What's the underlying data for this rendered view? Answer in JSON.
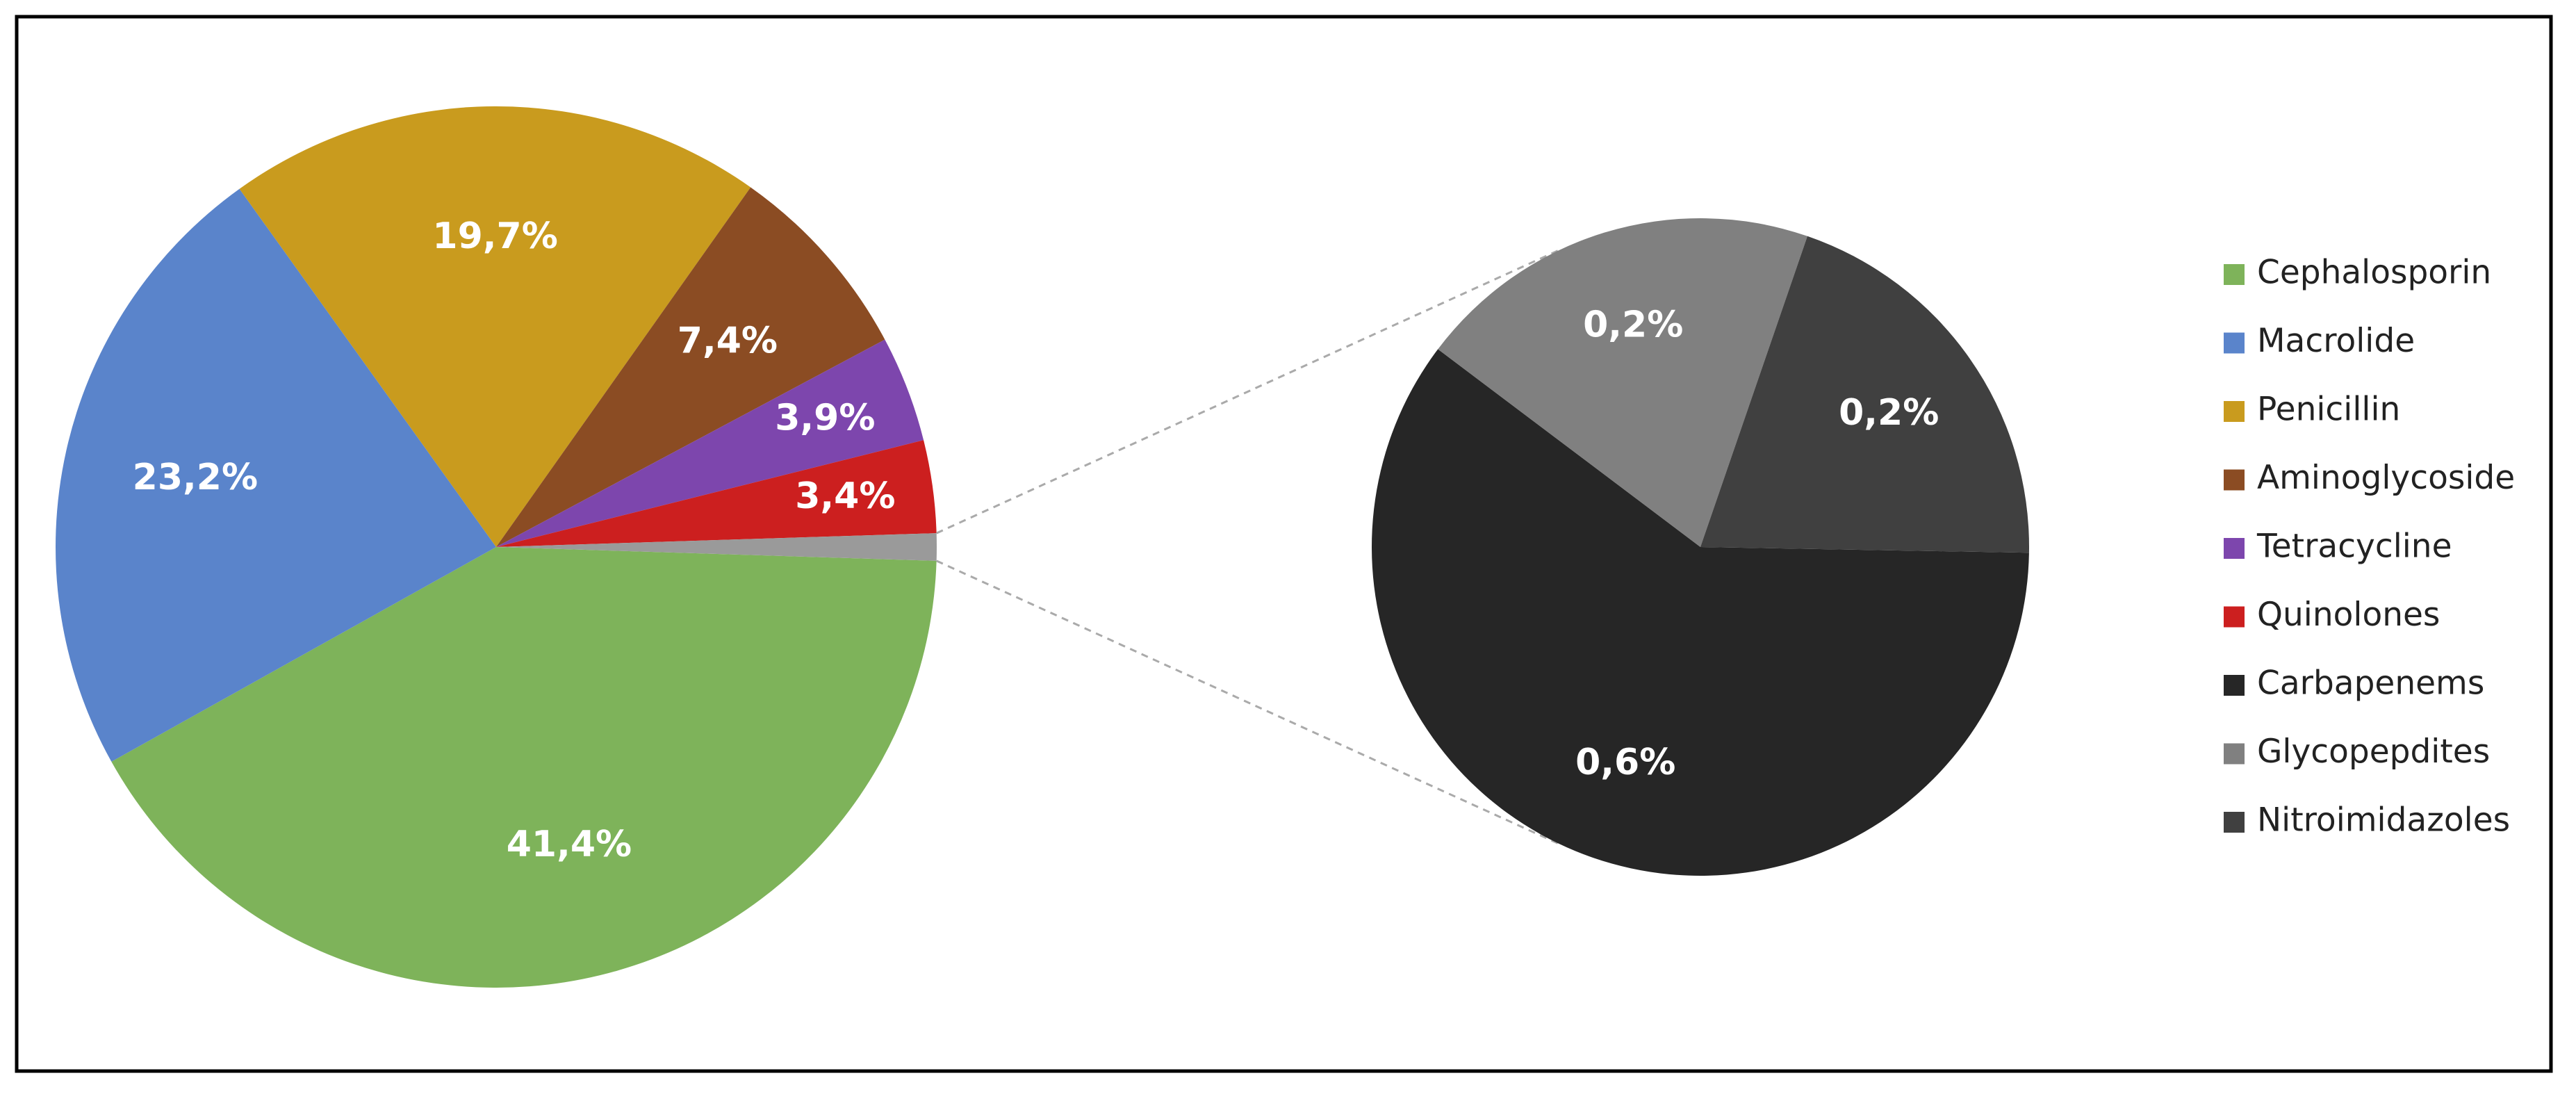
{
  "chart_data": {
    "type": "pie",
    "categories": [
      "Cephalosporin",
      "Macrolide",
      "Penicillin",
      "Aminoglycoside",
      "Tetracycline",
      "Quinolones",
      "Carbapenems",
      "Glycopepdites",
      "Nitroimidazoles"
    ],
    "values": [
      41.4,
      23.2,
      19.7,
      7.4,
      3.9,
      3.4,
      0.6,
      0.2,
      0.2
    ],
    "value_labels": [
      "41,4%",
      "23,2%",
      "19,7%",
      "7,4%",
      "3,9%",
      "3,4%",
      "0,6%",
      "0,2%",
      "0,2%"
    ],
    "colors": [
      "#7eb35a",
      "#5a84cb",
      "#c99b1e",
      "#8b4c23",
      "#7d46ad",
      "#cc1f1f",
      "#262626",
      "#808080",
      "#404040"
    ],
    "second_pie_count": 3,
    "legend": "right"
  }
}
